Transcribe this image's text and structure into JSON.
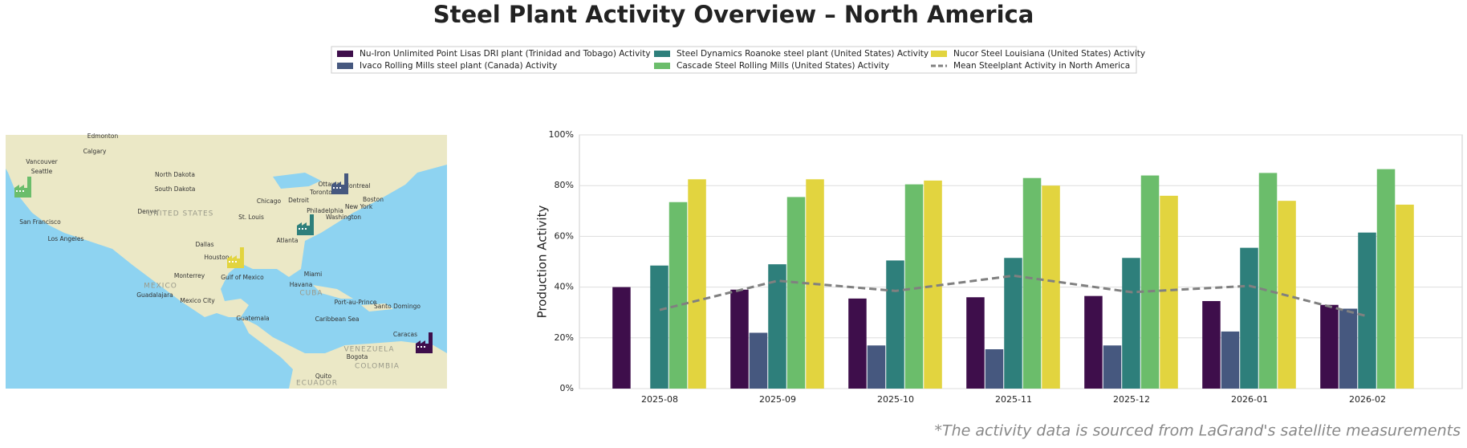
{
  "chart_data": {
    "type": "bar",
    "title": "Steel Plant Activity Overview – North America",
    "ylabel": "Production Activity",
    "categories": [
      "2025-08",
      "2025-09",
      "2025-10",
      "2025-11",
      "2025-12",
      "2026-01",
      "2026-02"
    ],
    "series": [
      {
        "name": "Nu-Iron Unlimited Point Lisas DRI plant (Trinidad and Tobago) Activity",
        "color": "#3e0e4b",
        "values": [
          40,
          39,
          35.5,
          36,
          36.5,
          34.5,
          33
        ]
      },
      {
        "name": "Ivaco Rolling Mills steel plant (Canada) Activity",
        "color": "#46587f",
        "values": [
          null,
          22,
          17,
          15.5,
          17,
          22.5,
          31.5
        ]
      },
      {
        "name": "Steel Dynamics Roanoke steel plant (United States) Activity",
        "color": "#2e7f7b",
        "values": [
          48.5,
          49,
          50.5,
          51.5,
          51.5,
          55.5,
          61.5
        ]
      },
      {
        "name": "Cascade Steel Rolling Mills (United States) Activity",
        "color": "#6bbd6b",
        "values": [
          73.5,
          75.5,
          80.5,
          83,
          84,
          85,
          86.5
        ]
      },
      {
        "name": "Nucor Steel Louisiana (United States) Activity",
        "color": "#e2d43f",
        "values": [
          82.5,
          82.5,
          82,
          80,
          76,
          74,
          72.5
        ]
      }
    ],
    "mean": {
      "name": "Mean Steelplant Activity in North America",
      "color": "#808080",
      "linestyle": "dashed",
      "values": [
        31,
        42.5,
        38.5,
        44.5,
        38,
        40.5,
        28.5
      ]
    },
    "ylim": [
      0,
      100
    ],
    "yticks": [
      {
        "value": 0,
        "label": "0%"
      },
      {
        "value": 20,
        "label": "20%"
      },
      {
        "value": 40,
        "label": "40%"
      },
      {
        "value": 60,
        "label": "60%"
      },
      {
        "value": 80,
        "label": "80%"
      },
      {
        "value": 100,
        "label": "100%"
      }
    ],
    "grid": true,
    "footnote": "*The activity data is sourced from LaGrand's satellite measurements"
  },
  "map": {
    "labels": [
      "Edmonton",
      "Calgary",
      "Vancouver",
      "Seattle",
      "San Francisco",
      "Los Angeles",
      "Denver",
      "UNITED STATES",
      "North Dakota",
      "South Dakota",
      "Chicago",
      "Detroit",
      "Toronto",
      "Ottawa",
      "Montreal",
      "Boston",
      "New York",
      "Philadelphia",
      "Washington",
      "St. Louis",
      "Dallas",
      "Houston",
      "Atlanta",
      "Miami",
      "Monterrey",
      "MEXICO",
      "Guadalajara",
      "Mexico City",
      "Havana",
      "CUBA",
      "Port-au-Prince",
      "Santo Domingo",
      "Guatemala",
      "Caribbean Sea",
      "Caracas",
      "VENEZUELA",
      "Bogota",
      "COLOMBIA",
      "Quito",
      "ECUADOR",
      "Gulf of Mexico"
    ]
  }
}
